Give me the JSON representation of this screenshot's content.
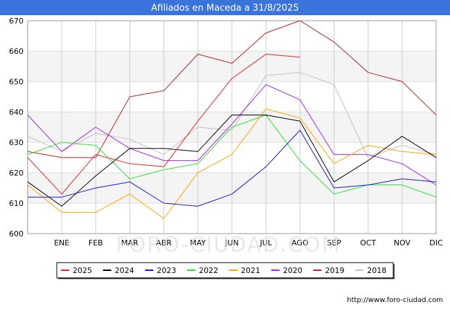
{
  "chart_data": {
    "type": "line",
    "title": "Afiliados en Maceda a 31/8/2025",
    "categories": [
      "",
      "ENE",
      "FEB",
      "MAR",
      "ABR",
      "MAY",
      "JUN",
      "JUL",
      "AGO",
      "SEP",
      "OCT",
      "NOV",
      "DIC"
    ],
    "ylim": [
      600,
      670
    ],
    "yticks": [
      600,
      610,
      620,
      630,
      640,
      650,
      660,
      670
    ],
    "grid": true,
    "legend_position": "bottom",
    "series": [
      {
        "name": "2025",
        "color": "#e8211b",
        "values": [
          625,
          613,
          626,
          623,
          622,
          637,
          651,
          659,
          658,
          null,
          null,
          null,
          null
        ]
      },
      {
        "name": "2024",
        "color": "#000000",
        "values": [
          617,
          609,
          619,
          628,
          628,
          627,
          639,
          639,
          637,
          617,
          624,
          632,
          625
        ]
      },
      {
        "name": "2023",
        "color": "#1414d8",
        "values": [
          612,
          612,
          615,
          617,
          610,
          609,
          613,
          622,
          634,
          615,
          616,
          618,
          617
        ]
      },
      {
        "name": "2022",
        "color": "#2ee02e",
        "values": [
          626,
          630,
          629,
          618,
          621,
          623,
          635,
          639,
          624,
          613,
          616,
          616,
          612
        ]
      },
      {
        "name": "2021",
        "color": "#ffa500",
        "values": [
          616,
          607,
          607,
          613,
          605,
          620,
          626,
          641,
          638,
          623,
          629,
          627,
          626
        ]
      },
      {
        "name": "2020",
        "color": "#a020f0",
        "values": [
          639,
          627,
          635,
          628,
          624,
          624,
          636,
          649,
          644,
          626,
          626,
          623,
          616
        ]
      },
      {
        "name": "2019",
        "color": "#b22222",
        "values": [
          627,
          625,
          625,
          645,
          647,
          659,
          656,
          666,
          670,
          663,
          653,
          650,
          639
        ]
      },
      {
        "name": "2018",
        "color": "#c0c0c0",
        "values": [
          632,
          627,
          633,
          631,
          626,
          635,
          634,
          652,
          653,
          649,
          625,
          629,
          626
        ]
      }
    ]
  },
  "footer": {
    "url": "http://www.foro-ciudad.com",
    "watermark": "FORO-CIUDAD.COM"
  }
}
